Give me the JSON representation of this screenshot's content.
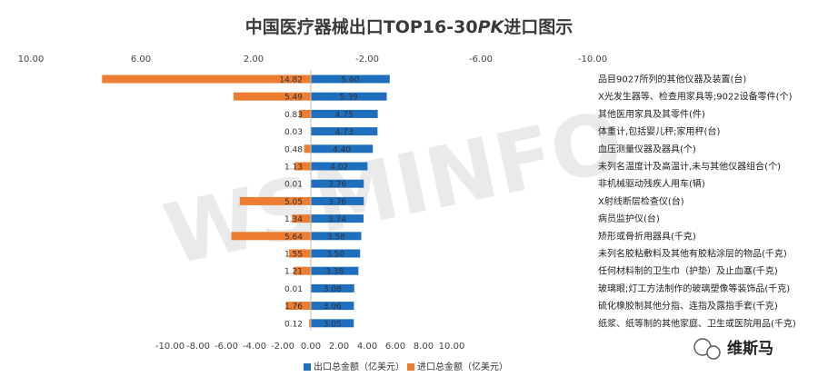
{
  "chart_data": {
    "type": "bar",
    "orientation": "horizontal",
    "title_prefix": "中国医疗器械出口TOP16-30",
    "title_pk": "PK",
    "title_suffix": "进口图示",
    "categories": [
      "品目9027所列的其他仪器及装置(台)",
      "X光发生器等、检查用家具等;9022设备零件(个)",
      "其他医用家具及其零件(件)",
      "体重计,包括婴儿秤;家用秤(台)",
      "血压测量仪器及器具(个)",
      "未列名温度计及高温计,未与其他仪器组合(个)",
      "非机械驱动残疾人用车(辆)",
      "X射线断层检查仪(台)",
      "病员监护仪(台)",
      "矫形或骨折用器具(千克)",
      "未列名胶粘敷料及其他有胶粘涂层的物品(千克)",
      "任何材料制的卫生巾（护垫）及止血塞(千克)",
      "玻璃眼;灯工方法制作的玻璃塑像等装饰品(千克)",
      "硫化橡胶制其他分指、连指及露指手套(千克)",
      "纸浆、纸等制的其他家庭、卫生或医院用品(千克)"
    ],
    "series": [
      {
        "name": "出口总金额（亿美元）",
        "color": "#1f6fbf",
        "values": [
          5.6,
          5.39,
          4.75,
          4.73,
          4.4,
          4.02,
          3.76,
          3.76,
          3.74,
          3.58,
          3.5,
          3.38,
          3.08,
          3.06,
          3.05
        ],
        "labels": [
          "5.60",
          "5.39",
          "4.75",
          "4.73",
          "4.40",
          "4.02",
          "3.76",
          "3.76",
          "3.74",
          "3.58",
          "3.50",
          "3.38",
          "3.08",
          "3.06",
          "3.05"
        ]
      },
      {
        "name": "进口总金额（亿美元）",
        "color": "#ed7d31",
        "values": [
          14.82,
          5.49,
          0.83,
          0.03,
          0.48,
          1.13,
          0.01,
          5.05,
          1.34,
          5.64,
          1.55,
          1.21,
          0.01,
          1.76,
          0.12
        ],
        "labels": [
          "14.82",
          "5.49",
          "0.83",
          "0.03",
          "0.48",
          "1.13",
          "0.01",
          "5.05",
          "1.34",
          "5.64",
          "1.55",
          "1.21",
          "0.01",
          "1.76",
          "0.12"
        ]
      }
    ],
    "xlim": [
      -10,
      10
    ],
    "bottom_ticks": [
      "-10.00",
      "-8.00",
      "-6.00",
      "-4.00",
      "-2.00",
      "0.00",
      "2.00",
      "4.00",
      "6.00",
      "8.00",
      "10.00"
    ],
    "top_ticks": [
      "10.00",
      "6.00",
      "2.00",
      "-2.00",
      "-6.00",
      "-10.00"
    ],
    "legend_position": "bottom-center",
    "watermark": "WSMINFO",
    "brand": "维斯马"
  }
}
